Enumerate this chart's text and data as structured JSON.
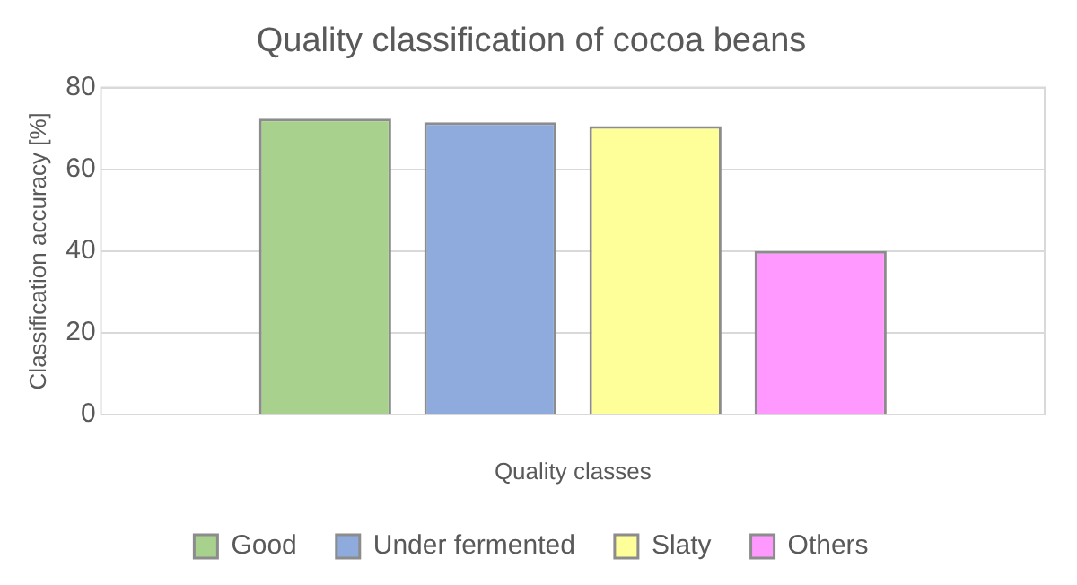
{
  "chart_data": {
    "type": "bar",
    "title": "Quality classification of cocoa beans",
    "xlabel": "Quality classes",
    "ylabel": "Classification accuracy [%]",
    "categories": [
      null
    ],
    "series": [
      {
        "name": "Good",
        "color": "#a9d18e",
        "values": [
          72.4
        ]
      },
      {
        "name": "Under fermented",
        "color": "#8faadc",
        "values": [
          71.5
        ]
      },
      {
        "name": "Slaty",
        "color": "#ffff99",
        "values": [
          70.6
        ]
      },
      {
        "name": "Others",
        "color": "#ff99ff",
        "values": [
          40
        ]
      }
    ],
    "ylim": [
      0,
      80
    ],
    "yticks": [
      0,
      20,
      40,
      60,
      80
    ],
    "grid": "y",
    "legend": "bottom"
  }
}
